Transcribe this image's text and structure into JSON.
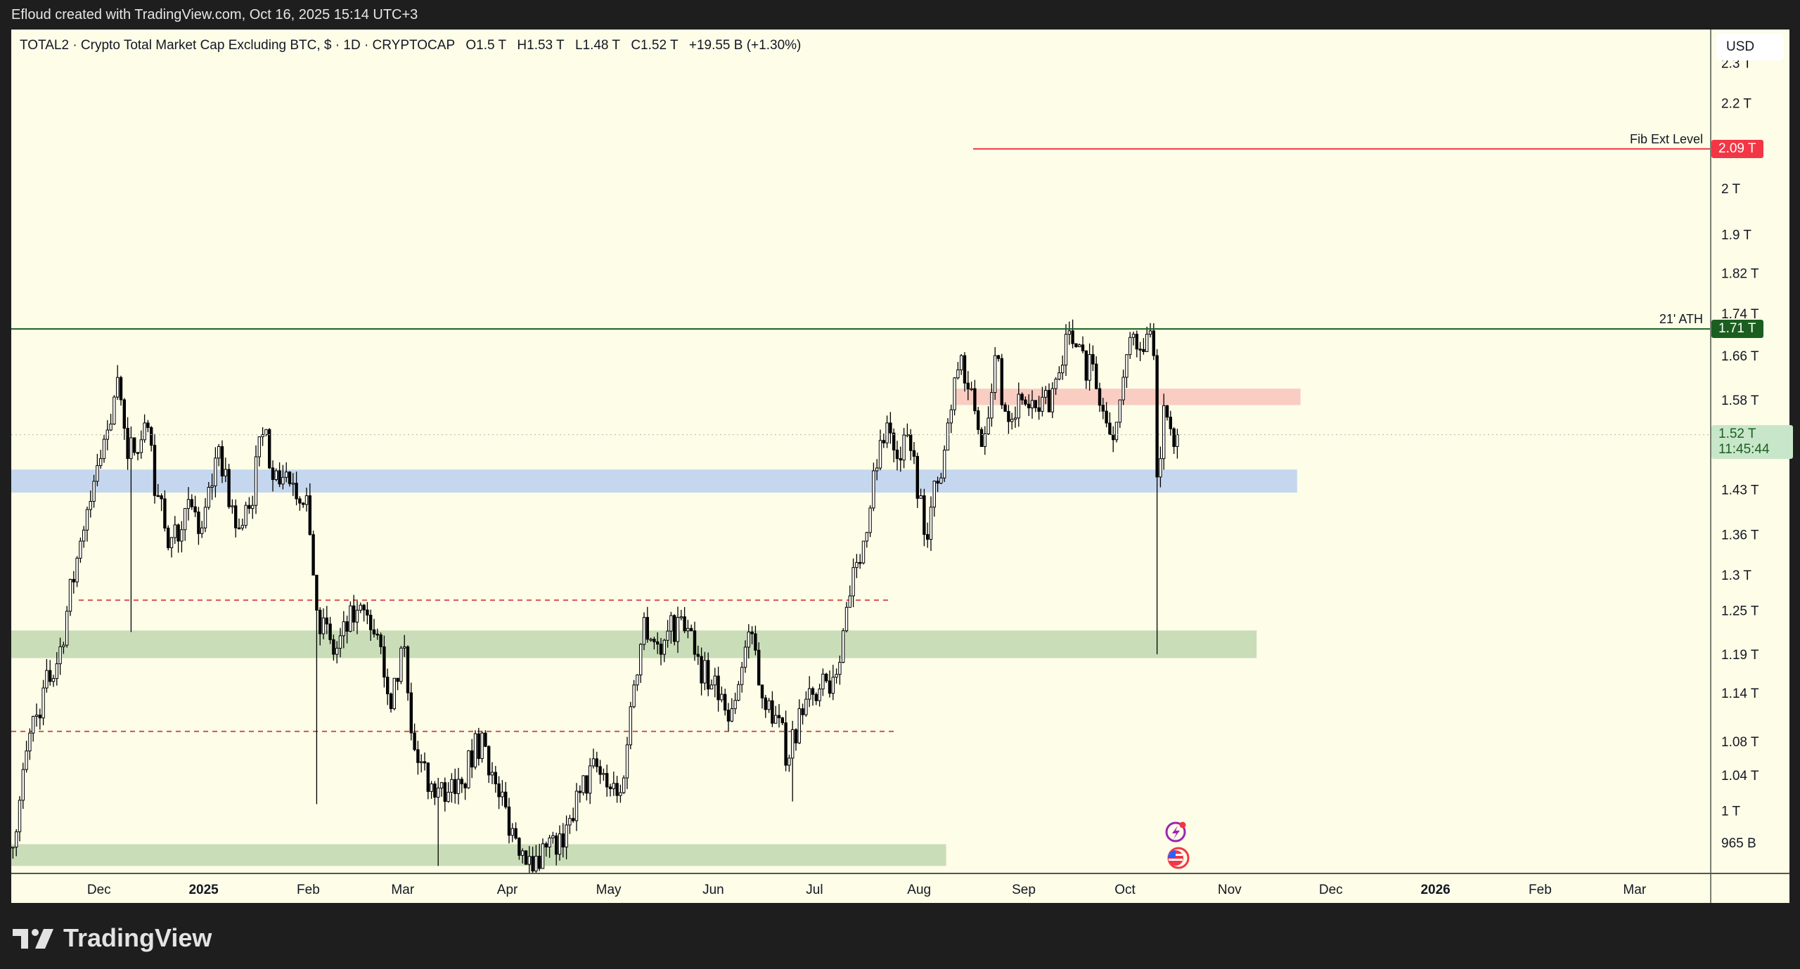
{
  "credit": "Efloud created with TradingView.com, Oct 16, 2025 15:14 UTC+3",
  "legend": {
    "symbol": "TOTAL2 · Crypto Total Market Cap Excluding BTC, $ · 1D · CRYPTOCAP",
    "open": "O1.5 T",
    "high": "H1.53 T",
    "low": "L1.48 T",
    "close": "C1.52 T",
    "change": "+19.55 B (+1.30%)"
  },
  "currency_button": "USD",
  "logo_text": "TradingView",
  "colors": {
    "background": "#fdfde8",
    "up_body": "#ffffff",
    "down_body": "#000000",
    "fib_line": "#f23645",
    "ath_line": "#1b5e20",
    "blue_zone": "#c5d7ee",
    "red_zone": "#f9cdc2",
    "green_zone": "#c9ddb8",
    "dashed": "#d9534f"
  },
  "chart_data": {
    "type": "candlestick",
    "title": "TOTAL2 · Crypto Total Market Cap Excluding BTC · 1D",
    "start_date": "2024-11-05",
    "scale": "log",
    "ylim": [
      0.93,
      2.35
    ],
    "xlim_days": [
      0,
      503
    ],
    "y_unit": "T USD",
    "close_anchors": [
      [
        0,
        0.96
      ],
      [
        5,
        1.09
      ],
      [
        14,
        1.2
      ],
      [
        20,
        1.35
      ],
      [
        26,
        1.48
      ],
      [
        31,
        1.62
      ],
      [
        34,
        1.48
      ],
      [
        39,
        1.54
      ],
      [
        43,
        1.42
      ],
      [
        46,
        1.34
      ],
      [
        51,
        1.4
      ],
      [
        56,
        1.37
      ],
      [
        61,
        1.5
      ],
      [
        66,
        1.37
      ],
      [
        70,
        1.4
      ],
      [
        74,
        1.52
      ],
      [
        78,
        1.46
      ],
      [
        83,
        1.44
      ],
      [
        87,
        1.42
      ],
      [
        90,
        1.25
      ],
      [
        95,
        1.19
      ],
      [
        102,
        1.25
      ],
      [
        109,
        1.2
      ],
      [
        112,
        1.12
      ],
      [
        116,
        1.2
      ],
      [
        119,
        1.07
      ],
      [
        124,
        1.03
      ],
      [
        128,
        1.01
      ],
      [
        133,
        1.03
      ],
      [
        139,
        1.09
      ],
      [
        143,
        1.03
      ],
      [
        148,
        0.98
      ],
      [
        153,
        0.95
      ],
      [
        158,
        0.96
      ],
      [
        163,
        0.96
      ],
      [
        168,
        1.02
      ],
      [
        173,
        1.05
      ],
      [
        180,
        1.02
      ],
      [
        184,
        1.15
      ],
      [
        187,
        1.24
      ],
      [
        192,
        1.19
      ],
      [
        197,
        1.24
      ],
      [
        202,
        1.19
      ],
      [
        207,
        1.15
      ],
      [
        213,
        1.12
      ],
      [
        218,
        1.22
      ],
      [
        221,
        1.15
      ],
      [
        224,
        1.13
      ],
      [
        230,
        1.06
      ],
      [
        233,
        1.12
      ],
      [
        238,
        1.13
      ],
      [
        243,
        1.16
      ],
      [
        248,
        1.27
      ],
      [
        252,
        1.35
      ],
      [
        255,
        1.46
      ],
      [
        259,
        1.54
      ],
      [
        262,
        1.48
      ],
      [
        265,
        1.52
      ],
      [
        269,
        1.42
      ],
      [
        270,
        1.36
      ],
      [
        274,
        1.44
      ],
      [
        277,
        1.54
      ],
      [
        281,
        1.66
      ],
      [
        284,
        1.6
      ],
      [
        287,
        1.5
      ],
      [
        291,
        1.66
      ],
      [
        294,
        1.56
      ],
      [
        299,
        1.58
      ],
      [
        304,
        1.56
      ],
      [
        308,
        1.6
      ],
      [
        312,
        1.7
      ],
      [
        316,
        1.68
      ],
      [
        321,
        1.6
      ],
      [
        325,
        1.52
      ],
      [
        328,
        1.58
      ],
      [
        332,
        1.7
      ],
      [
        336,
        1.7
      ],
      [
        338,
        1.66
      ],
      [
        339,
        1.45
      ],
      [
        340,
        1.48
      ],
      [
        341,
        1.57
      ],
      [
        342,
        1.55
      ],
      [
        343,
        1.53
      ],
      [
        344,
        1.5
      ],
      [
        345,
        1.52
      ]
    ],
    "wick_lows": [
      [
        35,
        1.22
      ],
      [
        90,
        1.007
      ],
      [
        126,
        0.94
      ],
      [
        231,
        1.01
      ],
      [
        339,
        1.19
      ]
    ],
    "last": {
      "open": 1.5,
      "high": 1.53,
      "low": 1.48,
      "close": 1.52
    },
    "y_ticks": [
      {
        "v": 2.3,
        "label": "2.3 T"
      },
      {
        "v": 2.2,
        "label": "2.2 T"
      },
      {
        "v": 2.0,
        "label": "2 T"
      },
      {
        "v": 1.9,
        "label": "1.9 T"
      },
      {
        "v": 1.82,
        "label": "1.82 T"
      },
      {
        "v": 1.74,
        "label": "1.74 T"
      },
      {
        "v": 1.66,
        "label": "1.66 T"
      },
      {
        "v": 1.58,
        "label": "1.58 T"
      },
      {
        "v": 1.43,
        "label": "1.43 T"
      },
      {
        "v": 1.36,
        "label": "1.36 T"
      },
      {
        "v": 1.3,
        "label": "1.3 T"
      },
      {
        "v": 1.25,
        "label": "1.25 T"
      },
      {
        "v": 1.19,
        "label": "1.19 T"
      },
      {
        "v": 1.14,
        "label": "1.14 T"
      },
      {
        "v": 1.08,
        "label": "1.08 T"
      },
      {
        "v": 1.04,
        "label": "1.04 T"
      },
      {
        "v": 1.0,
        "label": "1 T"
      },
      {
        "v": 0.965,
        "label": "965 B"
      }
    ],
    "x_ticks": [
      {
        "d": 26,
        "label": "Dec"
      },
      {
        "d": 57,
        "label": "2025",
        "bold": true
      },
      {
        "d": 88,
        "label": "Feb"
      },
      {
        "d": 116,
        "label": "Mar"
      },
      {
        "d": 147,
        "label": "Apr"
      },
      {
        "d": 177,
        "label": "May"
      },
      {
        "d": 208,
        "label": "Jun"
      },
      {
        "d": 238,
        "label": "Jul"
      },
      {
        "d": 269,
        "label": "Aug"
      },
      {
        "d": 300,
        "label": "Sep"
      },
      {
        "d": 330,
        "label": "Oct"
      },
      {
        "d": 361,
        "label": "Nov"
      },
      {
        "d": 391,
        "label": "Dec"
      },
      {
        "d": 422,
        "label": "2026",
        "bold": true
      },
      {
        "d": 453,
        "label": "Feb"
      },
      {
        "d": 481,
        "label": "Mar"
      }
    ],
    "zones": [
      {
        "name": "blue-zone",
        "from": 0,
        "to": 381,
        "top": 1.462,
        "bottom": 1.425,
        "color": "blue_zone"
      },
      {
        "name": "red-zone",
        "from": 279,
        "to": 382,
        "top": 1.6,
        "bottom": 1.571,
        "color": "red_zone"
      },
      {
        "name": "green-zone-upper",
        "from": 0,
        "to": 369,
        "top": 1.222,
        "bottom": 1.185,
        "color": "green_zone"
      },
      {
        "name": "green-zone-lower",
        "from": 0,
        "to": 277,
        "top": 0.963,
        "bottom": 0.94,
        "color": "green_zone"
      }
    ],
    "dashed_lines": [
      {
        "from": 20,
        "to": 261,
        "v": 1.264
      },
      {
        "from": 0,
        "to": 262,
        "v": 1.092
      }
    ],
    "levels": [
      {
        "name": "fib-ext-level",
        "label": "Fib Ext Level",
        "v": 2.09,
        "tag": "2.09 T",
        "from": 285,
        "color": "fib_line"
      },
      {
        "name": "ath-level",
        "label": "21' ATH",
        "v": 1.71,
        "tag": "1.71 T",
        "from": 0,
        "color": "ath_line"
      }
    ],
    "current": {
      "v": 1.52,
      "tag": "1.52 T",
      "countdown": "11:45:44"
    }
  }
}
